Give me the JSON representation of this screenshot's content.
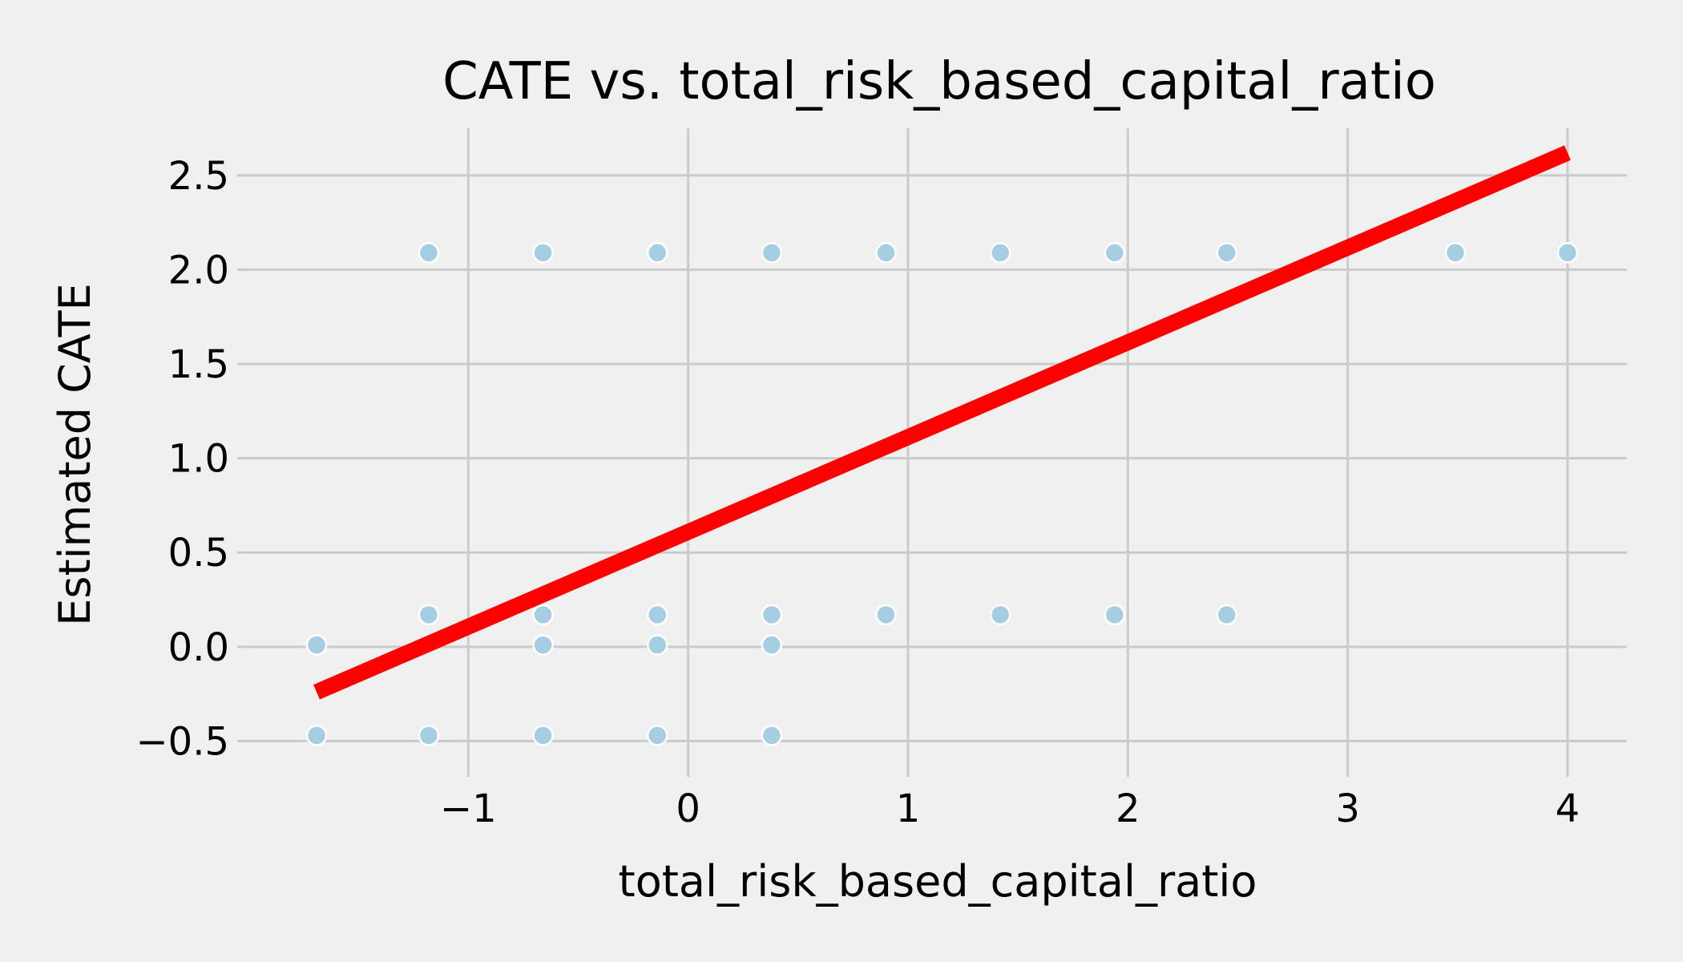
{
  "chart_data": {
    "type": "scatter",
    "title": "CATE vs. total_risk_based_capital_ratio",
    "xlabel": "total_risk_based_capital_ratio",
    "ylabel": "Estimated CATE",
    "xlim": [
      -2.0,
      4.27
    ],
    "ylim": [
      -0.63,
      2.75
    ],
    "xticks": [
      -1,
      0,
      1,
      2,
      3,
      4
    ],
    "xtick_labels": [
      "−1",
      "0",
      "1",
      "2",
      "3",
      "4"
    ],
    "yticks": [
      -0.5,
      0.0,
      0.5,
      1.0,
      1.5,
      2.0,
      2.5
    ],
    "ytick_labels": [
      "−0.5",
      "0.0",
      "0.5",
      "1.0",
      "1.5",
      "2.0",
      "2.5"
    ],
    "grid": true,
    "colors": {
      "points": "#a6cee3",
      "line": "#ff0000",
      "background": "#f0f0f0",
      "grid": "#cbcbcb"
    },
    "series": [
      {
        "type": "scatter",
        "points": [
          [
            -1.18,
            2.09
          ],
          [
            -0.66,
            2.09
          ],
          [
            -0.14,
            2.09
          ],
          [
            0.38,
            2.09
          ],
          [
            0.9,
            2.09
          ],
          [
            1.42,
            2.09
          ],
          [
            1.94,
            2.09
          ],
          [
            2.45,
            2.09
          ],
          [
            3.49,
            2.09
          ],
          [
            4.0,
            2.09
          ],
          [
            -1.18,
            0.17
          ],
          [
            -0.66,
            0.17
          ],
          [
            -0.14,
            0.17
          ],
          [
            0.38,
            0.17
          ],
          [
            0.9,
            0.17
          ],
          [
            1.42,
            0.17
          ],
          [
            1.94,
            0.17
          ],
          [
            2.45,
            0.17
          ],
          [
            -1.69,
            0.01
          ],
          [
            -0.66,
            0.01
          ],
          [
            -0.14,
            0.01
          ],
          [
            0.38,
            0.01
          ],
          [
            -1.69,
            -0.47
          ],
          [
            -1.18,
            -0.47
          ],
          [
            -0.66,
            -0.47
          ],
          [
            -0.14,
            -0.47
          ],
          [
            0.38,
            -0.47
          ]
        ]
      },
      {
        "type": "line",
        "points": [
          [
            -1.69,
            -0.24
          ],
          [
            4.0,
            2.62
          ]
        ]
      }
    ]
  }
}
